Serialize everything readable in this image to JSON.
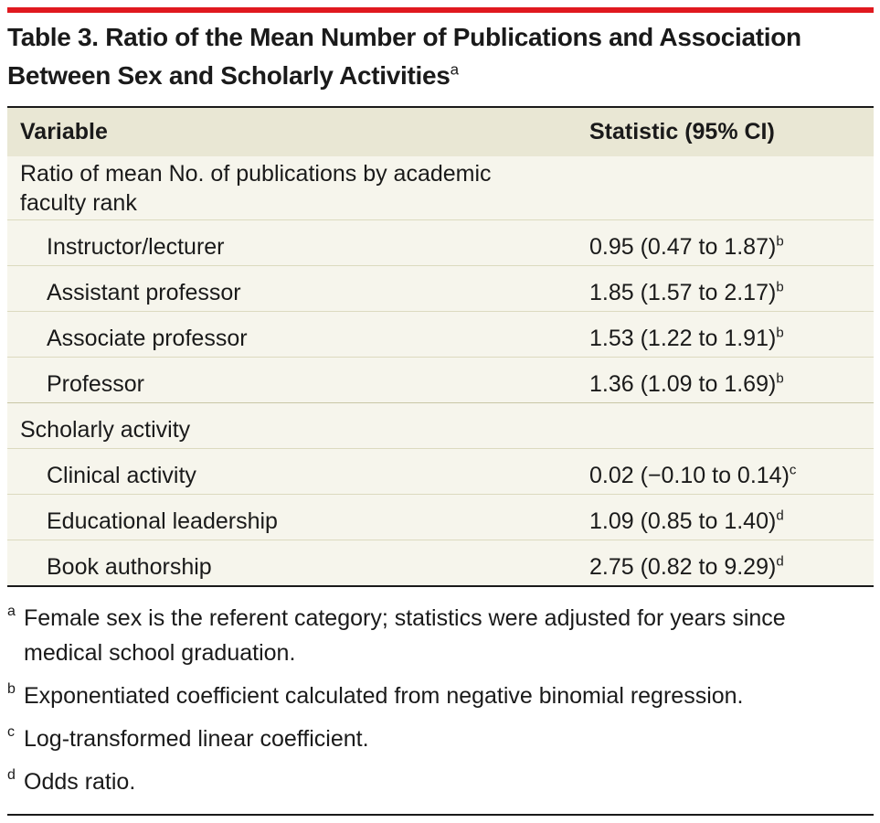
{
  "accent_color": "#e0191f",
  "title": {
    "text": "Table 3. Ratio of the Mean Number of Publications and Association Between Sex and Scholarly Activities",
    "note_mark": "a"
  },
  "table": {
    "headers": [
      "Variable",
      "Statistic (95% CI)"
    ],
    "rows": [
      {
        "variable": "Ratio of mean No. of publications by academic faculty rank",
        "statistic": "",
        "note": "",
        "indent": false
      },
      {
        "variable": "Instructor/lecturer",
        "statistic": "0.95 (0.47 to 1.87)",
        "note": "b",
        "indent": true
      },
      {
        "variable": "Assistant professor",
        "statistic": "1.85 (1.57 to 2.17)",
        "note": "b",
        "indent": true
      },
      {
        "variable": "Associate professor",
        "statistic": "1.53 (1.22 to 1.91)",
        "note": "b",
        "indent": true
      },
      {
        "variable": "Professor",
        "statistic": "1.36 (1.09 to 1.69)",
        "note": "b",
        "indent": true
      },
      {
        "variable": "Scholarly activity",
        "statistic": "",
        "note": "",
        "indent": false
      },
      {
        "variable": "Clinical activity",
        "statistic": "0.02 (−0.10 to 0.14)",
        "note": "c",
        "indent": true
      },
      {
        "variable": "Educational leadership",
        "statistic": "1.09 (0.85 to 1.40)",
        "note": "d",
        "indent": true
      },
      {
        "variable": "Book authorship",
        "statistic": "2.75 (0.82 to 9.29)",
        "note": "d",
        "indent": true
      }
    ]
  },
  "footnotes": [
    {
      "mark": "a",
      "text": "Female sex is the referent category; statistics were adjusted for years since medical school graduation."
    },
    {
      "mark": "b",
      "text": "Exponentiated coefficient calculated from negative binomial regression."
    },
    {
      "mark": "c",
      "text": "Log-transformed linear coefficient."
    },
    {
      "mark": "d",
      "text": "Odds ratio."
    }
  ]
}
